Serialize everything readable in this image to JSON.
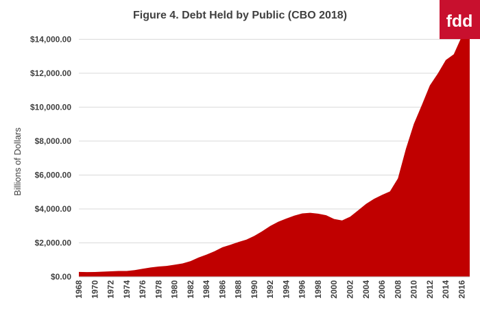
{
  "chart_data": {
    "type": "area",
    "title": "Figure 4. Debt Held by Public (CBO 2018)",
    "xlabel": "",
    "ylabel": "Billions of Dollars",
    "ylim": [
      0,
      14500
    ],
    "yticks": [
      "$0.00",
      "$2,000.00",
      "$4,000.00",
      "$6,000.00",
      "$8,000.00",
      "$10,000.00",
      "$12,000.00",
      "$14,000.00"
    ],
    "grid": "horizontal",
    "legend": "none",
    "x": [
      1968,
      1969,
      1970,
      1971,
      1972,
      1973,
      1974,
      1975,
      1976,
      1977,
      1978,
      1979,
      1980,
      1981,
      1982,
      1983,
      1984,
      1985,
      1986,
      1987,
      1988,
      1989,
      1990,
      1991,
      1992,
      1993,
      1994,
      1995,
      1996,
      1997,
      1998,
      1999,
      2000,
      2001,
      2002,
      2003,
      2004,
      2005,
      2006,
      2007,
      2008,
      2009,
      2010,
      2011,
      2012,
      2013,
      2014,
      2015,
      2016,
      2017
    ],
    "xticks": [
      "1968",
      "1970",
      "1972",
      "1974",
      "1976",
      "1978",
      "1980",
      "1982",
      "1984",
      "1986",
      "1988",
      "1990",
      "1992",
      "1994",
      "1996",
      "1998",
      "2000",
      "2002",
      "2004",
      "2006",
      "2008",
      "2010",
      "2012",
      "2014",
      "2016"
    ],
    "series": [
      {
        "name": "",
        "color": "#c00000",
        "values": [
          290,
          278,
          283,
          303,
          322,
          341,
          344,
          395,
          477,
          549,
          607,
          640,
          712,
          789,
          925,
          1137,
          1307,
          1507,
          1741,
          1890,
          2052,
          2191,
          2412,
          2689,
          3000,
          3248,
          3433,
          3604,
          3734,
          3772,
          3721,
          3632,
          3410,
          3320,
          3540,
          3913,
          4295,
          4592,
          4829,
          5035,
          5803,
          7545,
          9019,
          10128,
          11281,
          11983,
          12780,
          13117,
          14168,
          14665
        ]
      }
    ]
  },
  "logo": {
    "text": "fdd",
    "bg_color": "#c8102e"
  }
}
